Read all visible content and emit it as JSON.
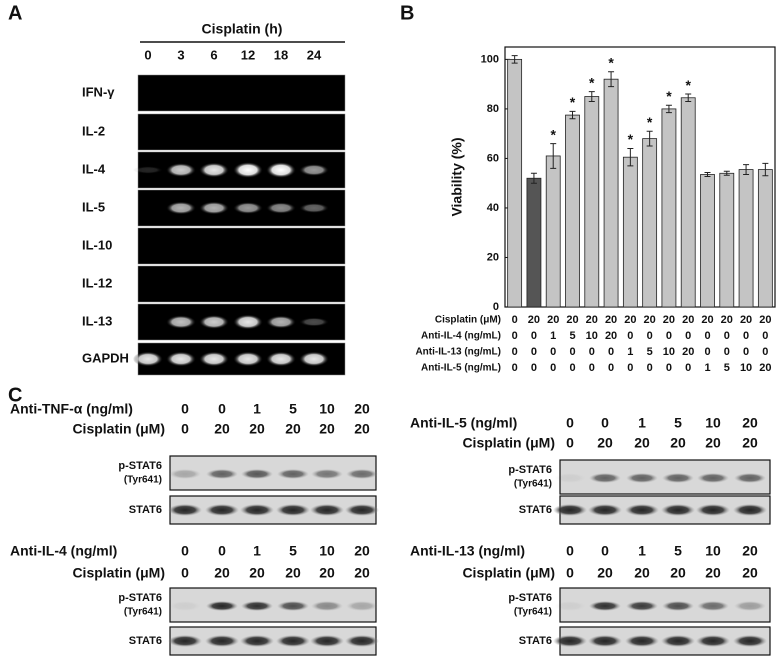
{
  "panel_a": {
    "label": "A",
    "title": "Cisplatin (h)",
    "lanes": [
      0,
      3,
      6,
      12,
      18,
      24
    ],
    "rows": [
      "IFN-γ",
      "IL-2",
      "IL-4",
      "IL-5",
      "IL-10",
      "IL-12",
      "IL-13",
      "GAPDH"
    ]
  },
  "chart_data": {
    "type": "bar",
    "panel_label": "B",
    "y_label": "Viability (%)",
    "values": [
      100,
      52,
      61,
      77.5,
      85,
      92,
      60.5,
      68,
      80,
      84.5,
      53.5,
      54,
      55.5,
      55.5
    ],
    "errors": [
      1.5,
      2,
      5,
      1.5,
      2,
      3,
      3.5,
      3,
      1.5,
      1.5,
      0.8,
      0.8,
      2,
      2.5
    ],
    "colors": [
      "#c4c4c4",
      "#555555",
      "#c4c4c4",
      "#c4c4c4",
      "#c4c4c4",
      "#c4c4c4",
      "#c4c4c4",
      "#c4c4c4",
      "#c4c4c4",
      "#c4c4c4",
      "#c4c4c4",
      "#c4c4c4",
      "#c4c4c4",
      "#c4c4c4"
    ],
    "significance": [
      null,
      null,
      "*",
      "*",
      "*",
      "*",
      "*",
      "*",
      "*",
      "*",
      null,
      null,
      null,
      null
    ],
    "ylim": [
      0,
      105
    ],
    "yticks": [
      0,
      20,
      40,
      60,
      80,
      100
    ],
    "condition_rows": [
      {
        "label": "Cisplatin (μM)",
        "values": [
          0,
          20,
          20,
          20,
          20,
          20,
          20,
          20,
          20,
          20,
          20,
          20,
          20,
          20
        ]
      },
      {
        "label": "Anti-IL-4 (ng/mL)",
        "values": [
          0,
          0,
          1,
          5,
          10,
          20,
          0,
          0,
          0,
          0,
          0,
          0,
          0,
          0
        ]
      },
      {
        "label": "Anti-IL-13 (ng/mL)",
        "values": [
          0,
          0,
          0,
          0,
          0,
          0,
          1,
          5,
          10,
          20,
          0,
          0,
          0,
          0
        ]
      },
      {
        "label": "Anti-IL-5 (ng/mL)",
        "values": [
          0,
          0,
          0,
          0,
          0,
          0,
          0,
          0,
          0,
          0,
          1,
          5,
          10,
          20
        ]
      }
    ]
  },
  "panel_c": {
    "label": "C",
    "blots": [
      {
        "treatment": "Anti-TNF-α (ng/ml)",
        "doses": [
          0,
          0,
          1,
          5,
          10,
          20
        ],
        "cisplatin_label": "Cisplatin (μM)",
        "cisplatin": [
          0,
          20,
          20,
          20,
          20,
          20
        ],
        "target": "p-STAT6",
        "site": "(Tyr641)",
        "loading": "STAT6"
      },
      {
        "treatment": "Anti-IL-5 (ng/ml)",
        "doses": [
          0,
          0,
          1,
          5,
          10,
          20
        ],
        "cisplatin_label": "Cisplatin (μM)",
        "cisplatin": [
          0,
          20,
          20,
          20,
          20,
          20
        ],
        "target": "p-STAT6",
        "site": "(Tyr641)",
        "loading": "STAT6"
      },
      {
        "treatment": "Anti-IL-4 (ng/ml)",
        "doses": [
          0,
          0,
          1,
          5,
          10,
          20
        ],
        "cisplatin_label": "Cisplatin (μM)",
        "cisplatin": [
          0,
          20,
          20,
          20,
          20,
          20
        ],
        "target": "p-STAT6",
        "site": "(Tyr641)",
        "loading": "STAT6"
      },
      {
        "treatment": "Anti-IL-13 (ng/ml)",
        "doses": [
          0,
          0,
          1,
          5,
          10,
          20
        ],
        "cisplatin_label": "Cisplatin (μM)",
        "cisplatin": [
          0,
          20,
          20,
          20,
          20,
          20
        ],
        "target": "p-STAT6",
        "site": "(Tyr641)",
        "loading": "STAT6"
      }
    ]
  }
}
